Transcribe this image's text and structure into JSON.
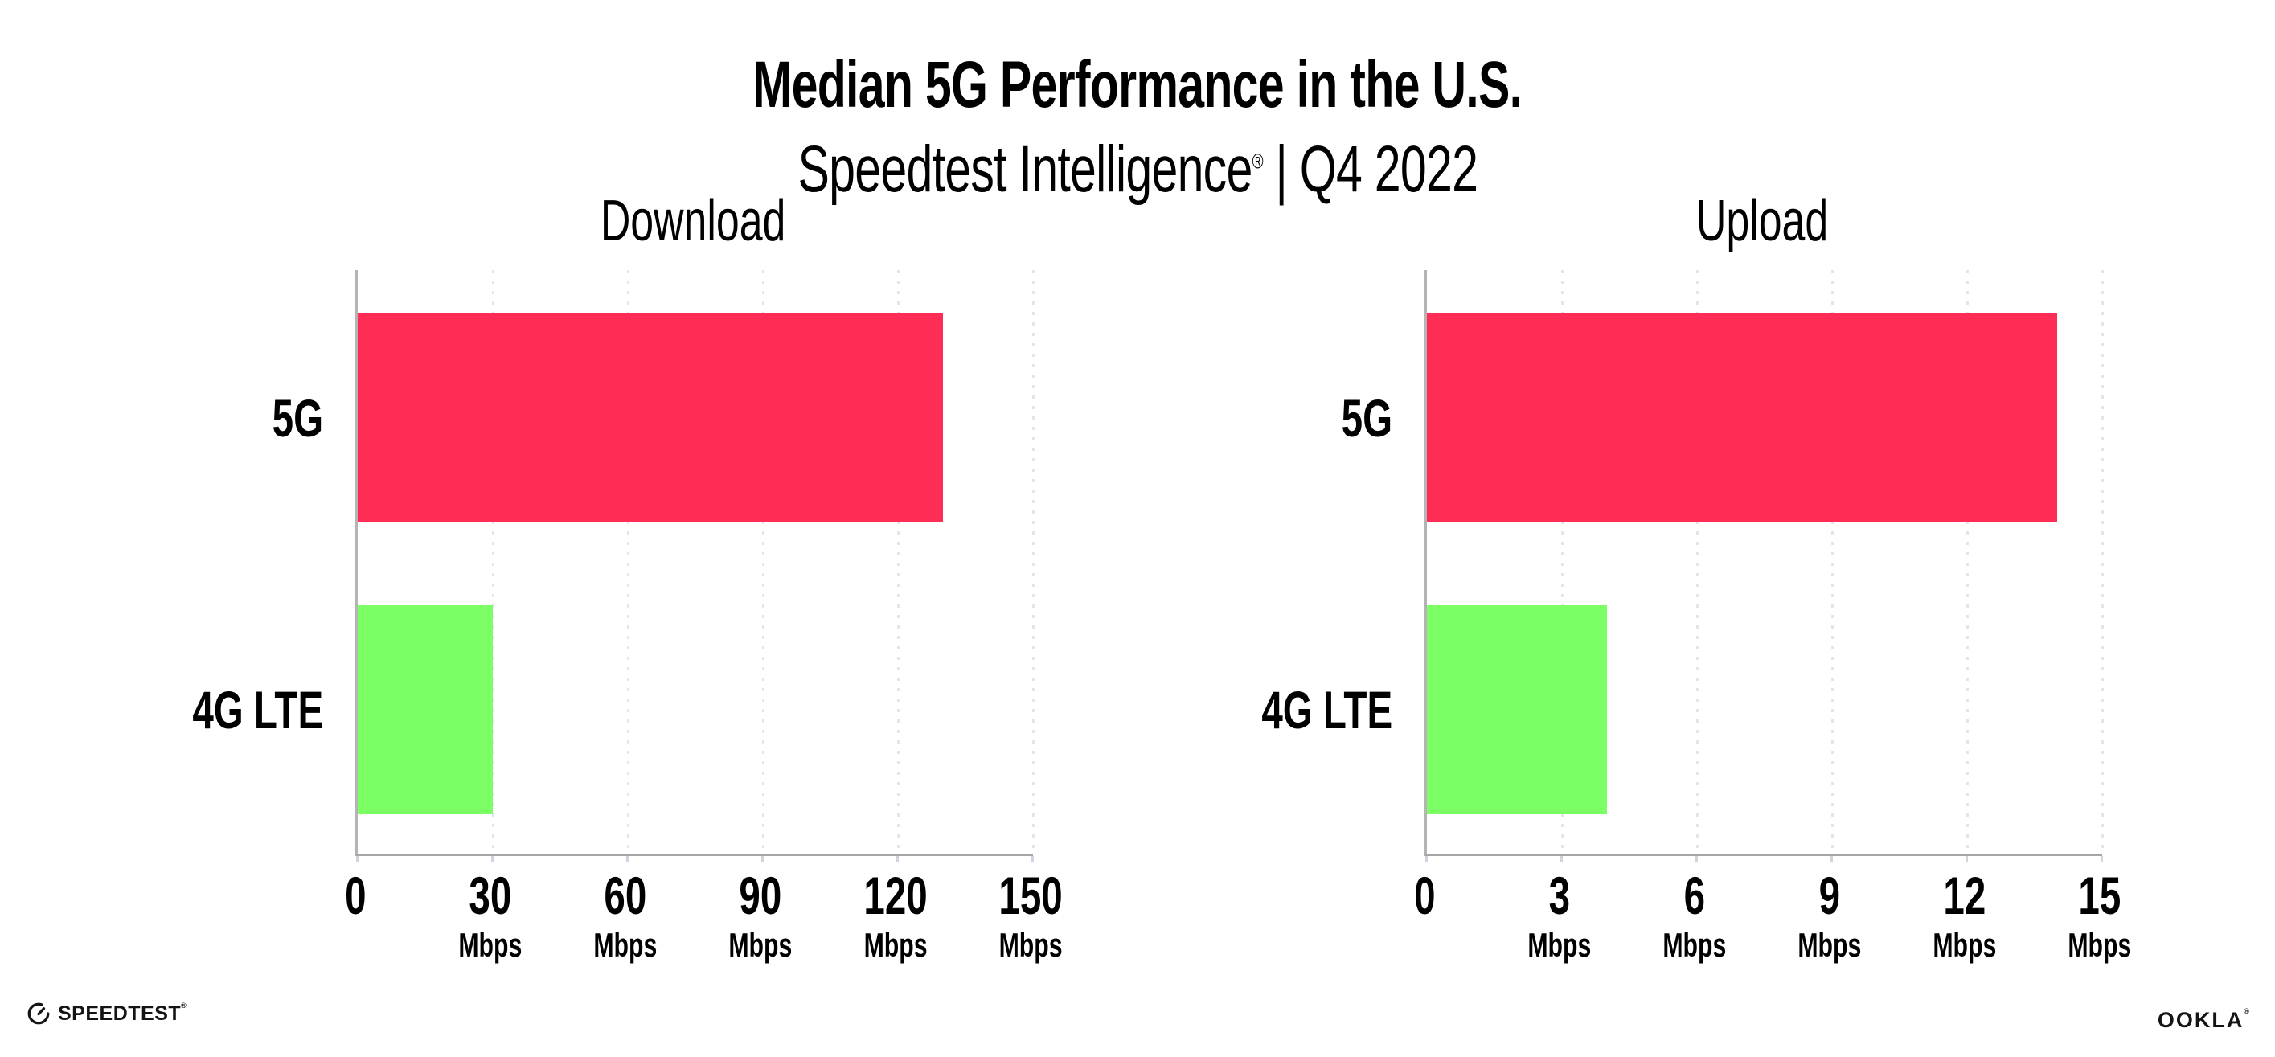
{
  "header": {
    "title": "Median 5G Performance in the U.S.",
    "subtitle_brand": "Speedtest Intelligence",
    "subtitle_reg": "®",
    "subtitle_rest": "| Q4 2022"
  },
  "chart_data": [
    {
      "type": "bar",
      "orientation": "horizontal",
      "title": "Download",
      "categories": [
        "5G",
        "4G LTE"
      ],
      "values": [
        130,
        30
      ],
      "unit": "Mbps",
      "xlabel": "Mbps",
      "xlim": [
        0,
        150
      ],
      "xticks": [
        0,
        30,
        60,
        90,
        120,
        150
      ],
      "bar_colors": [
        "#ff2d55",
        "#7cfe65"
      ],
      "grid": "dotted-vertical",
      "legend": "none"
    },
    {
      "type": "bar",
      "orientation": "horizontal",
      "title": "Upload",
      "categories": [
        "5G",
        "4G LTE"
      ],
      "values": [
        14,
        4
      ],
      "unit": "Mbps",
      "xlabel": "Mbps",
      "xlim": [
        0,
        15
      ],
      "xticks": [
        0,
        3,
        6,
        9,
        12,
        15
      ],
      "bar_colors": [
        "#ff2d55",
        "#7cfe65"
      ],
      "grid": "dotted-vertical",
      "legend": "none"
    }
  ],
  "colors": {
    "bar_5g": "#ff2d55",
    "bar_4g_lte": "#7cfe65",
    "gridline": "#e4e4ef",
    "axis": "#a6a6a6",
    "text": "#000000"
  },
  "footer": {
    "speedtest_wordmark": "SPEEDTEST",
    "speedtest_reg": "®",
    "ookla_wordmark": "OOKLA",
    "ookla_reg": "®"
  },
  "icons": {
    "speedtest_gauge": "speedometer-gauge-icon"
  }
}
